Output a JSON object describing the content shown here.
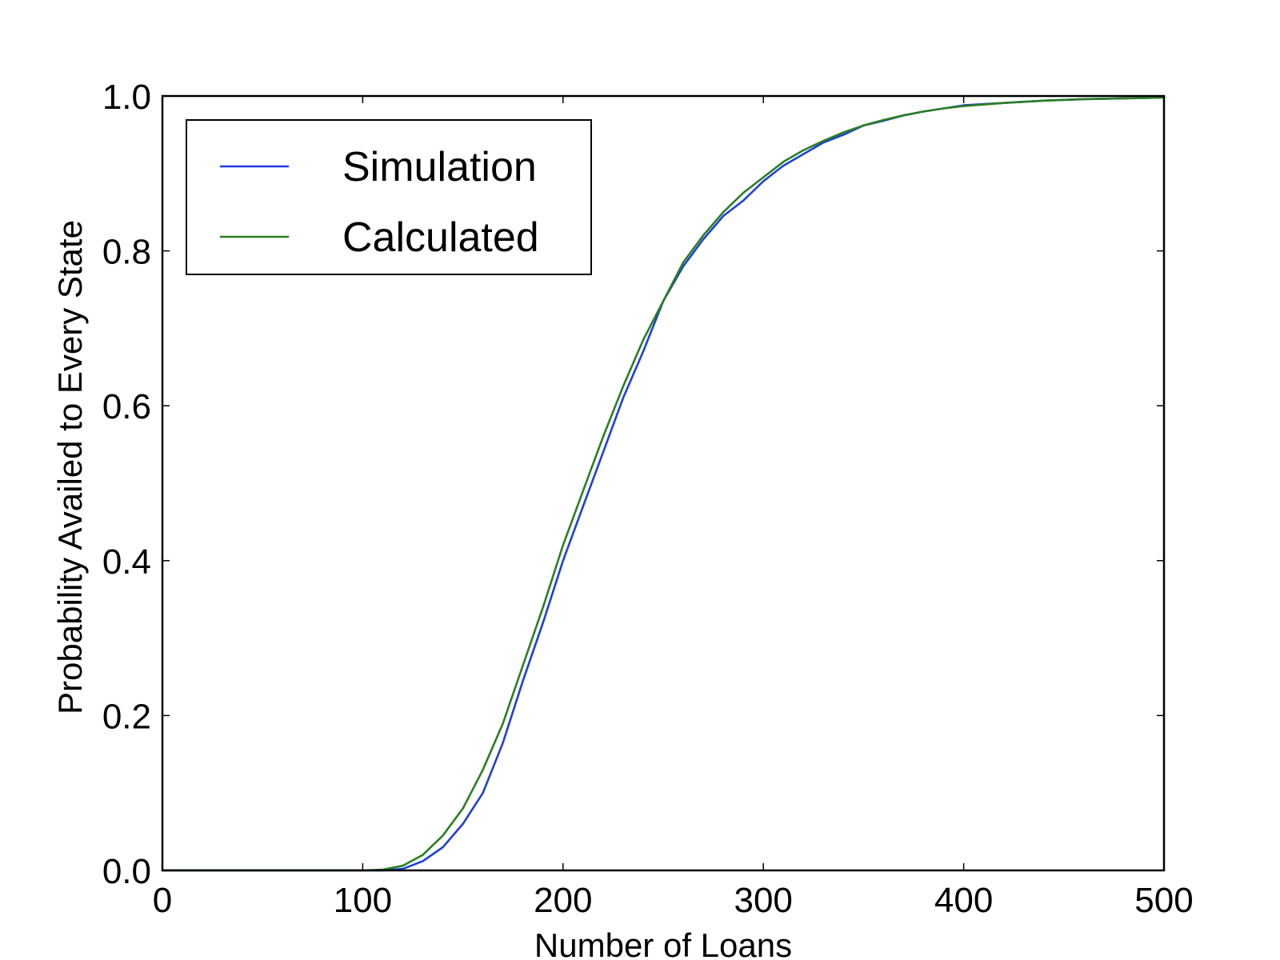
{
  "chart_data": {
    "type": "line",
    "title": "",
    "xlabel": "Number of Loans",
    "ylabel": "Probability Availed to Every State",
    "xlim": [
      0,
      500
    ],
    "ylim": [
      0.0,
      1.0
    ],
    "x_ticks": [
      "0",
      "100",
      "200",
      "300",
      "400",
      "500"
    ],
    "y_ticks": [
      "0.0",
      "0.2",
      "0.4",
      "0.6",
      "0.8",
      "1.0"
    ],
    "grid": false,
    "legend_position": "top-left",
    "series": [
      {
        "name": "Simulation",
        "color": "#1f3fdc",
        "x": [
          0,
          100,
          110,
          120,
          130,
          140,
          150,
          160,
          170,
          180,
          190,
          200,
          210,
          220,
          230,
          240,
          250,
          260,
          270,
          280,
          290,
          300,
          310,
          320,
          330,
          340,
          350,
          360,
          370,
          380,
          390,
          400,
          420,
          440,
          460,
          480,
          500
        ],
        "y": [
          0.0,
          0.0,
          0.0,
          0.002,
          0.012,
          0.03,
          0.06,
          0.1,
          0.165,
          0.245,
          0.32,
          0.4,
          0.47,
          0.54,
          0.61,
          0.67,
          0.735,
          0.78,
          0.815,
          0.845,
          0.865,
          0.89,
          0.91,
          0.925,
          0.94,
          0.95,
          0.962,
          0.968,
          0.975,
          0.98,
          0.984,
          0.988,
          0.991,
          0.994,
          0.996,
          0.997,
          0.998
        ]
      },
      {
        "name": "Calculated",
        "color": "#2a7f23",
        "x": [
          0,
          100,
          110,
          120,
          130,
          140,
          150,
          160,
          170,
          180,
          190,
          200,
          210,
          220,
          230,
          240,
          250,
          260,
          270,
          280,
          290,
          300,
          310,
          320,
          330,
          340,
          350,
          360,
          370,
          380,
          390,
          400,
          420,
          440,
          460,
          480,
          500
        ],
        "y": [
          0.0,
          0.0,
          0.001,
          0.006,
          0.02,
          0.045,
          0.08,
          0.13,
          0.19,
          0.265,
          0.34,
          0.42,
          0.49,
          0.56,
          0.625,
          0.685,
          0.735,
          0.785,
          0.82,
          0.85,
          0.875,
          0.895,
          0.915,
          0.93,
          0.942,
          0.953,
          0.962,
          0.969,
          0.975,
          0.98,
          0.984,
          0.987,
          0.991,
          0.994,
          0.996,
          0.997,
          0.998
        ]
      }
    ]
  }
}
